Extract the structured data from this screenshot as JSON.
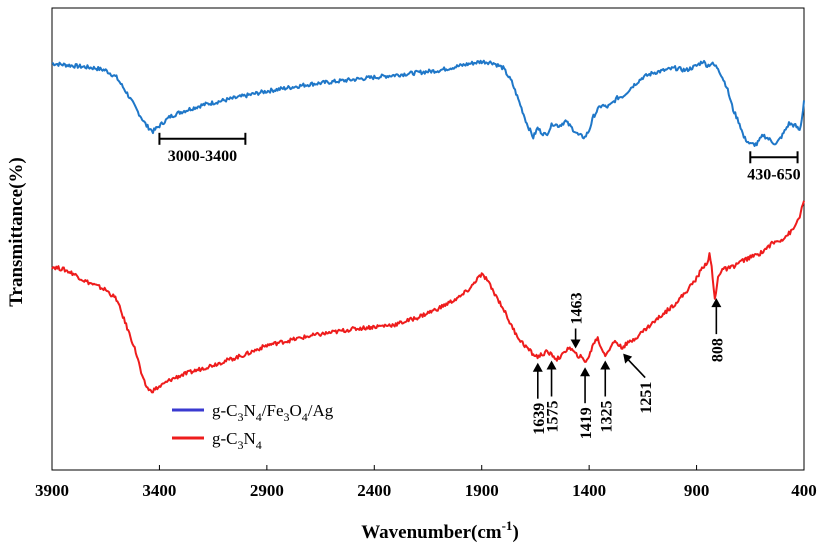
{
  "chart_data": {
    "type": "line",
    "title": "",
    "xlabel": "Wavenumber(cm",
    "xlabel_sup": "-1",
    "xlabel_close": ")",
    "ylabel": "Transmittance(%)",
    "xlim": [
      3900,
      400
    ],
    "x_reversed": true,
    "ylim": [
      0,
      100
    ],
    "y_ticks_shown": false,
    "grid": false,
    "legend_position": "bottom-left",
    "x_ticks": [
      3900,
      3400,
      2900,
      2400,
      1900,
      1400,
      900,
      400
    ],
    "x_tick_labels": [
      "3900",
      "3400",
      "2900",
      "2400",
      "1900",
      "1400",
      "900",
      "400"
    ],
    "series": [
      {
        "name": "g-C3N4/Fe3O4/Ag",
        "legend_parts": [
          [
            "g-C",
            ""
          ],
          [
            "3",
            "sub"
          ],
          [
            "N",
            ""
          ],
          [
            "4",
            "sub"
          ],
          [
            "/Fe",
            ""
          ],
          [
            "3",
            "sub"
          ],
          [
            "O",
            ""
          ],
          [
            "4",
            "sub"
          ],
          [
            "/Ag",
            ""
          ]
        ],
        "color": "#1f77c8",
        "legend_color": "#3a3ad0",
        "x": [
          3900,
          3800,
          3700,
          3650,
          3600,
          3550,
          3500,
          3460,
          3430,
          3400,
          3350,
          3300,
          3200,
          3100,
          3000,
          2900,
          2700,
          2500,
          2300,
          2100,
          1950,
          1900,
          1850,
          1800,
          1760,
          1720,
          1690,
          1660,
          1640,
          1620,
          1600,
          1570,
          1540,
          1510,
          1480,
          1450,
          1420,
          1400,
          1380,
          1360,
          1340,
          1320,
          1300,
          1270,
          1240,
          1200,
          1150,
          1100,
          1050,
          1000,
          950,
          900,
          870,
          850,
          830,
          800,
          760,
          730,
          700,
          680,
          650,
          620,
          590,
          560,
          530,
          500,
          470,
          440,
          420,
          410,
          400
        ],
        "y": [
          88,
          87.5,
          87,
          86.5,
          85,
          81.5,
          77.5,
          74.5,
          73.3,
          74.5,
          76.5,
          77.5,
          79,
          80,
          81,
          82,
          83.5,
          84.5,
          85.5,
          86.5,
          88,
          88.4,
          88.2,
          87,
          84,
          79,
          75,
          72,
          74,
          73,
          72.5,
          75,
          74.5,
          75.5,
          74,
          72.5,
          72,
          73.5,
          76.5,
          78,
          79,
          78.5,
          79,
          80.5,
          81,
          83,
          85,
          86,
          86.5,
          87,
          86.5,
          87.5,
          88.5,
          87.5,
          88,
          87,
          83,
          78,
          75,
          72,
          70.5,
          70.5,
          72.5,
          71.5,
          70.5,
          72.5,
          75,
          74.5,
          73.5,
          76,
          80
        ]
      },
      {
        "name": "g-C3N4",
        "legend_parts": [
          [
            "g-C",
            ""
          ],
          [
            "3",
            "sub"
          ],
          [
            "N",
            ""
          ],
          [
            "4",
            "sub"
          ]
        ],
        "color": "#ee1c1c",
        "legend_color": "#ee1c1c",
        "x": [
          3900,
          3850,
          3800,
          3750,
          3700,
          3650,
          3600,
          3560,
          3520,
          3500,
          3480,
          3460,
          3440,
          3420,
          3400,
          3350,
          3300,
          3200,
          3100,
          3000,
          2900,
          2700,
          2500,
          2300,
          2200,
          2100,
          2000,
          1950,
          1920,
          1900,
          1880,
          1850,
          1800,
          1760,
          1720,
          1690,
          1660,
          1640,
          1620,
          1600,
          1575,
          1550,
          1520,
          1500,
          1480,
          1463,
          1440,
          1420,
          1400,
          1380,
          1360,
          1340,
          1325,
          1300,
          1280,
          1260,
          1251,
          1200,
          1150,
          1100,
          1050,
          1000,
          950,
          900,
          870,
          850,
          840,
          830,
          820,
          815,
          808,
          800,
          780,
          760,
          730,
          700,
          650,
          600,
          550,
          500,
          450,
          420,
          400
        ],
        "y": [
          44,
          43.5,
          42.5,
          41,
          40,
          39,
          37,
          32,
          27,
          24,
          20,
          18,
          17,
          17.5,
          18,
          19.5,
          20.5,
          22,
          23.5,
          25,
          27,
          29,
          30.5,
          31.5,
          33,
          35,
          37.5,
          39.5,
          41.5,
          42.2,
          41.5,
          39,
          35,
          31,
          28,
          26.5,
          25,
          24.5,
          25,
          25.5,
          25,
          24,
          25,
          26.5,
          26,
          25,
          24.5,
          23.5,
          24.5,
          27.5,
          28.5,
          26,
          25,
          26.5,
          28,
          27,
          26.5,
          28,
          30,
          32,
          34,
          36,
          38.5,
          41.5,
          44,
          45,
          46.5,
          44,
          39,
          37,
          38.5,
          42,
          43.5,
          43.5,
          44,
          45,
          46,
          47,
          49,
          50,
          52,
          55,
          58
        ]
      }
    ],
    "annotations": [
      {
        "label": "3000-3400",
        "kind": "bracket",
        "x_start": 3400,
        "x_end": 3000
      },
      {
        "label": "430-650",
        "kind": "bracket",
        "x_start": 650,
        "x_end": 430
      },
      {
        "label": "1639",
        "kind": "arrow-up"
      },
      {
        "label": "1575",
        "kind": "arrow-up"
      },
      {
        "label": "1419",
        "kind": "arrow-up"
      },
      {
        "label": "1325",
        "kind": "arrow-up"
      },
      {
        "label": "1251",
        "kind": "arrow-diag"
      },
      {
        "label": "1463",
        "kind": "arrow-down"
      },
      {
        "label": "808",
        "kind": "arrow-up"
      }
    ]
  }
}
